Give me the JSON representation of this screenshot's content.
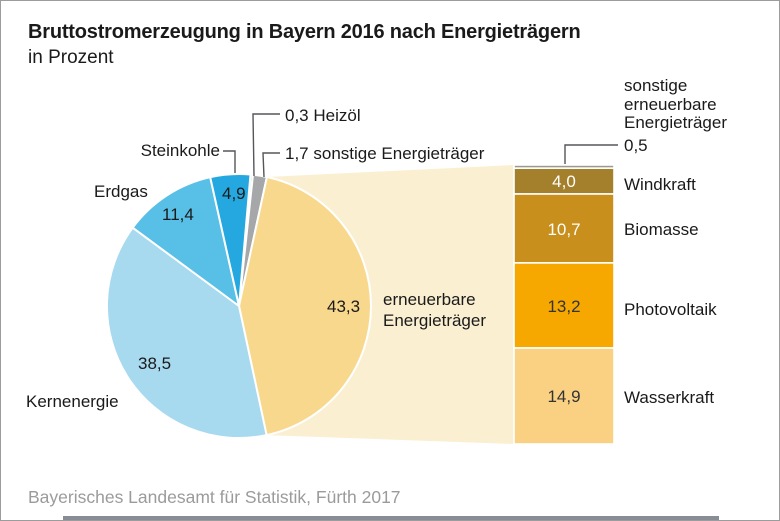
{
  "title": "Bruttostromerzeugung in Bayern 2016 nach Energieträgern",
  "subtitle": "in Prozent",
  "source": "Bayerisches Landesamt für Statistik, Fürth 2017",
  "chart_data": {
    "type": "pie",
    "title": "Bruttostromerzeugung in Bayern 2016 nach Energieträgern",
    "unit": "Prozent",
    "pie": {
      "segments": [
        {
          "label": "Heizöl",
          "value": 0.3,
          "display": "0,3",
          "color": "#cfcfcf"
        },
        {
          "label": "sonstige Energieträger",
          "value": 1.7,
          "display": "1,7",
          "color": "#a5a7a9"
        },
        {
          "label": "erneuerbare Energieträger",
          "value": 43.3,
          "display": "43,3",
          "color": "#f8d88c",
          "breakout": true
        },
        {
          "label": "Kernenergie",
          "value": 38.5,
          "display": "38,5",
          "color": "#a7d9ef"
        },
        {
          "label": "Erdgas",
          "value": 11.4,
          "display": "11,4",
          "color": "#58bfe7"
        },
        {
          "label": "Steinkohle",
          "value": 4.9,
          "display": "4,9",
          "color": "#25a8df"
        }
      ]
    },
    "breakout": {
      "band_color": "#fbefd2",
      "total_label": "erneuerbare Energieträger",
      "total_value": 43.3,
      "segments": [
        {
          "label": "sonstige erneuerbare Energieträger",
          "value": 0.5,
          "display": "0,5",
          "color": "#9c9a8e",
          "text_color": "#333333"
        },
        {
          "label": "Windkraft",
          "value": 4.0,
          "display": "4,0",
          "color": "#a5802c",
          "text_color": "#ffffff"
        },
        {
          "label": "Biomasse",
          "value": 10.7,
          "display": "10,7",
          "color": "#c88f1d",
          "text_color": "#ffffff"
        },
        {
          "label": "Photovoltaik",
          "value": 13.2,
          "display": "13,2",
          "color": "#f7a800",
          "text_color": "#333333"
        },
        {
          "label": "Wasserkraft",
          "value": 14.9,
          "display": "14,9",
          "color": "#fad183",
          "text_color": "#333333"
        }
      ]
    },
    "legend_position": "none",
    "grid": false
  },
  "accent_bar_color": "#868d95"
}
